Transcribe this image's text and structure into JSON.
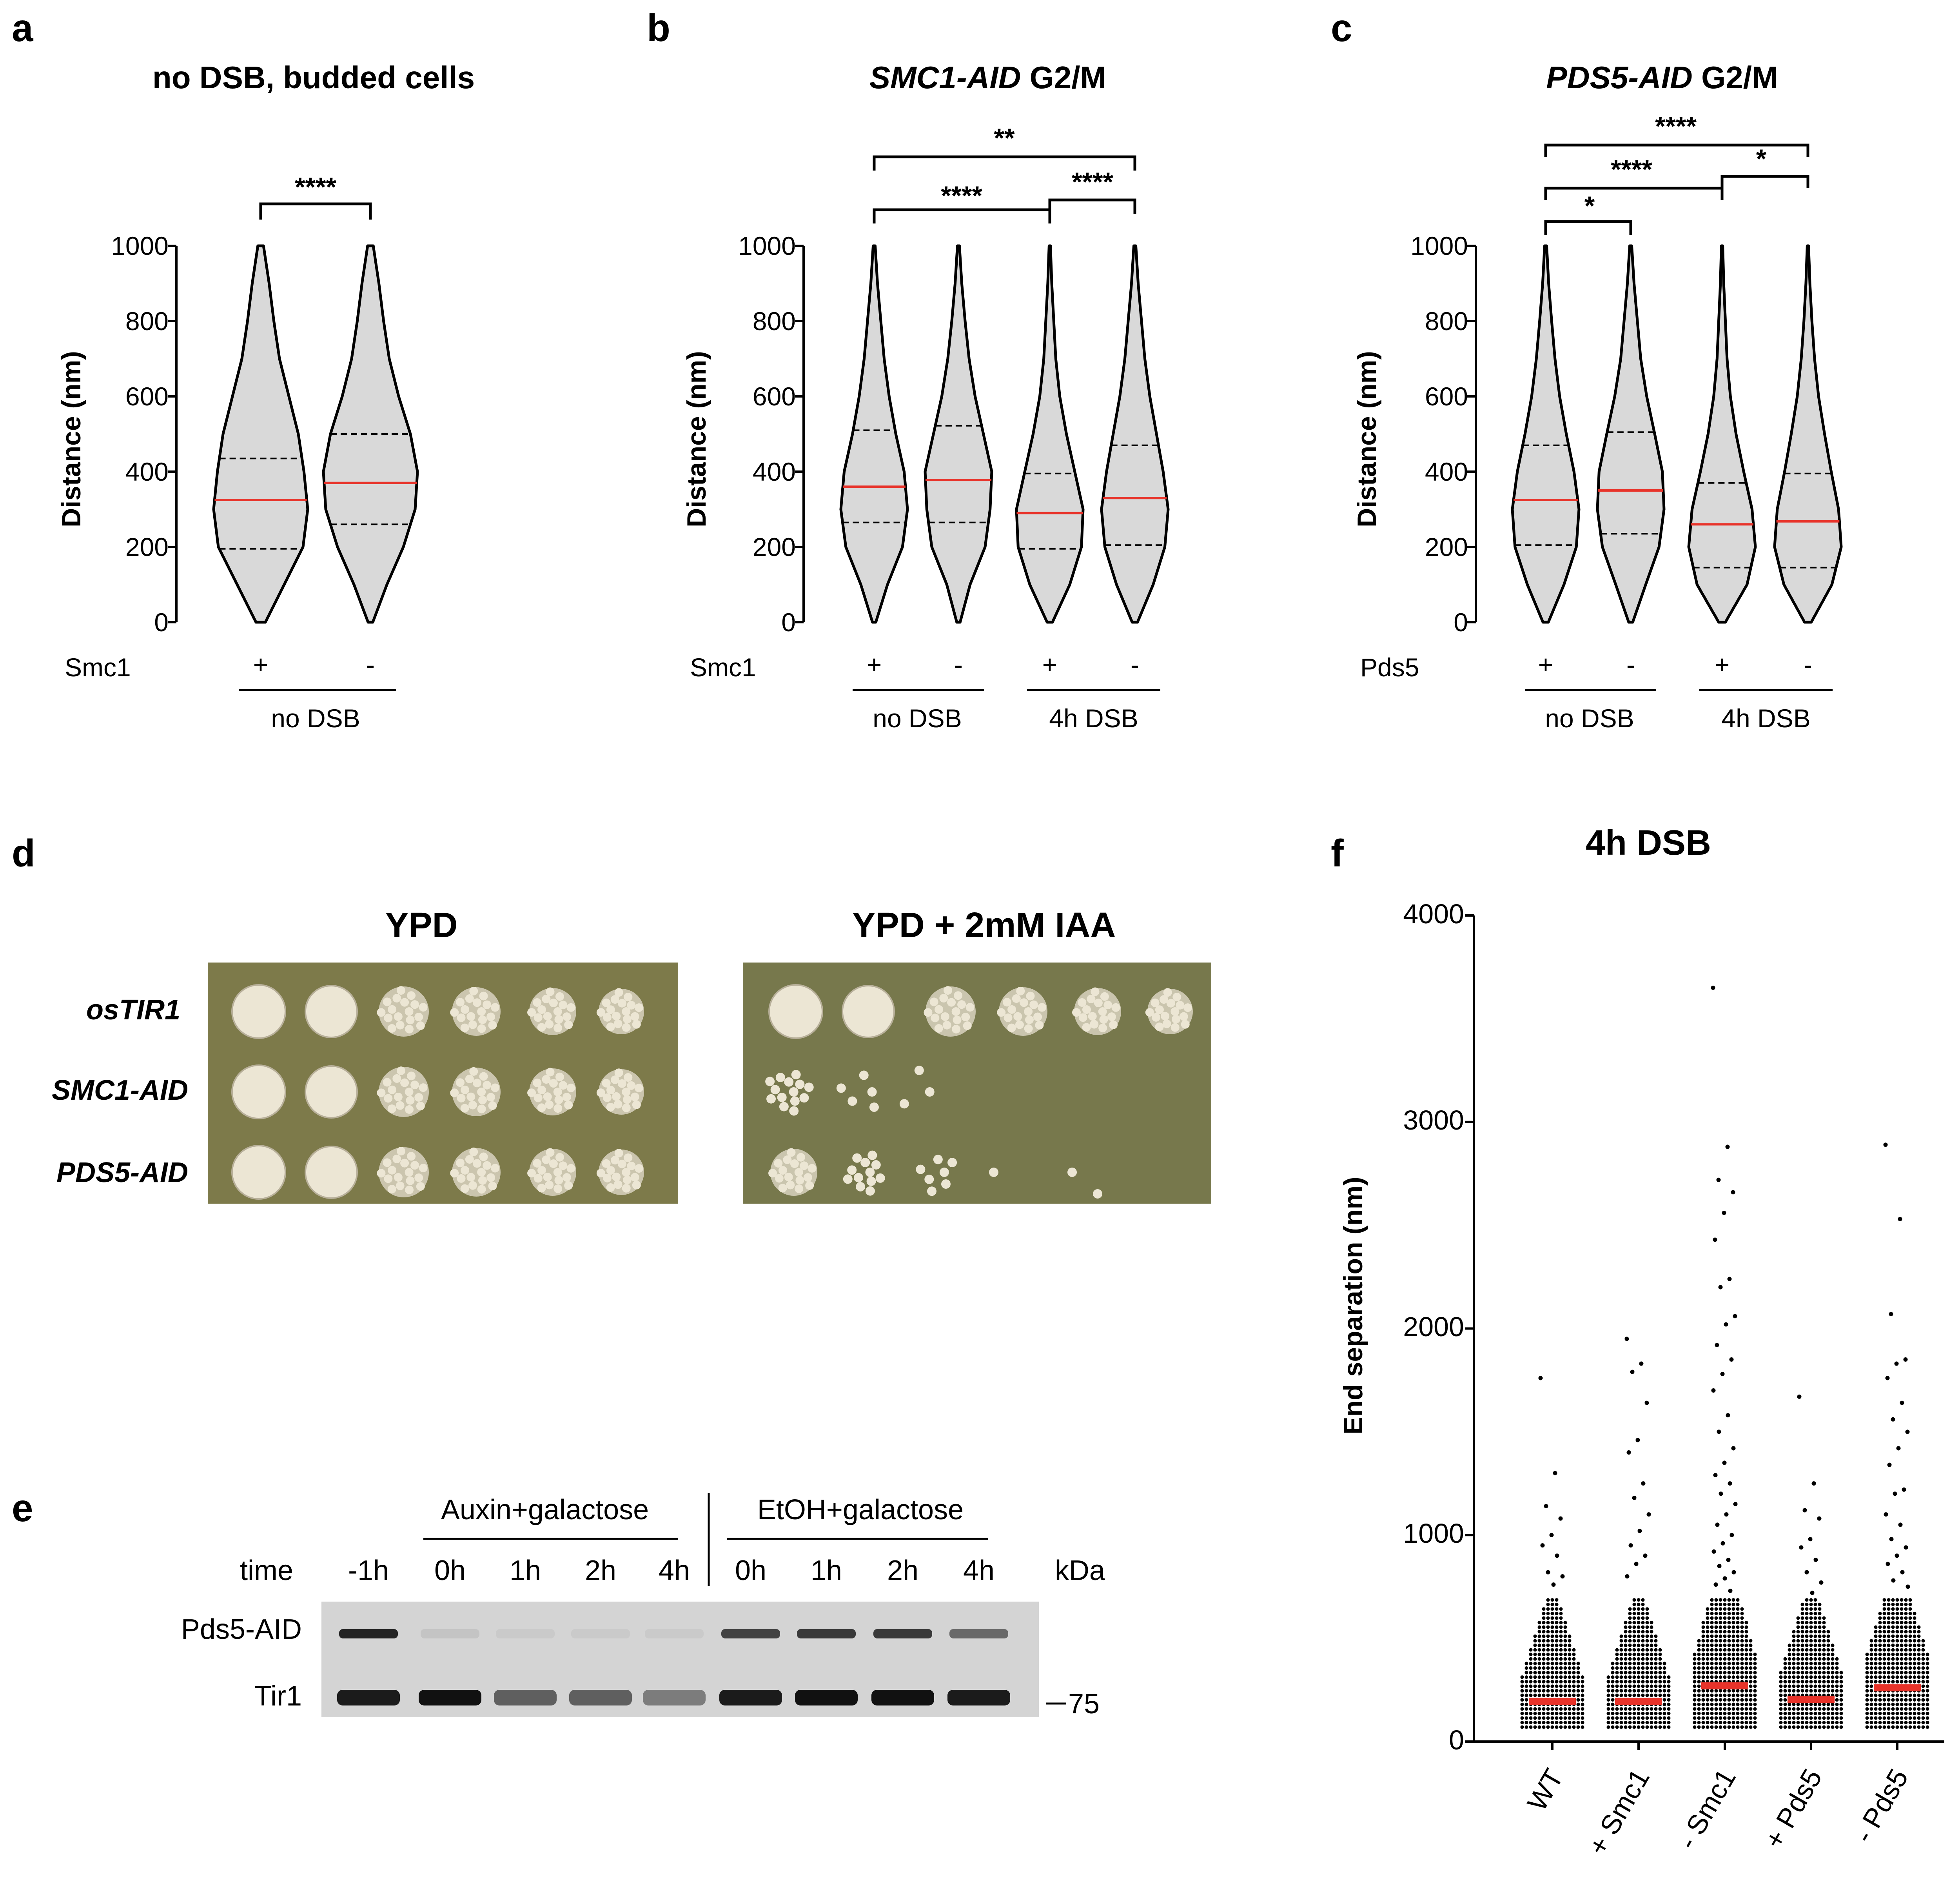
{
  "panels": {
    "a": {
      "letter": "a",
      "title": "no DSB, budded cells",
      "y_label": "Distance (nm)",
      "y_ticks": [
        "0",
        "200",
        "400",
        "600",
        "800",
        "1000"
      ],
      "factor_label": "Smc1",
      "signs": [
        "+",
        "-"
      ],
      "groups": [
        "no DSB"
      ],
      "sig": [
        "****"
      ]
    },
    "b": {
      "letter": "b",
      "title_italic": "SMC1-AID",
      "title_rest": " G2/M",
      "y_label": "Distance (nm)",
      "y_ticks": [
        "0",
        "200",
        "400",
        "600",
        "800",
        "1000"
      ],
      "factor_label": "Smc1",
      "signs": [
        "+",
        "-",
        "+",
        "-"
      ],
      "groups": [
        "no DSB",
        "4h DSB"
      ],
      "sig": [
        "**",
        "****",
        "****"
      ]
    },
    "c": {
      "letter": "c",
      "title_italic": "PDS5-AID",
      "title_rest": " G2/M",
      "y_label": "Distance (nm)",
      "y_ticks": [
        "0",
        "200",
        "400",
        "600",
        "800",
        "1000"
      ],
      "factor_label": "Pds5",
      "signs": [
        "+",
        "-",
        "+",
        "-"
      ],
      "groups": [
        "no DSB",
        "4h DSB"
      ],
      "sig": [
        "****",
        "****",
        "*",
        "*"
      ]
    },
    "d": {
      "letter": "d",
      "plate_titles": [
        "YPD",
        "YPD + 2mM IAA"
      ],
      "strains": [
        "osTIR1",
        "SMC1-AID",
        "PDS5-AID"
      ]
    },
    "e": {
      "letter": "e",
      "conditions": [
        "Auxin+galactose",
        "EtOH+galactose"
      ],
      "time_label": "time",
      "lanes": [
        "-1h",
        "0h",
        "1h",
        "2h",
        "4h",
        "0h",
        "1h",
        "2h",
        "4h"
      ],
      "kda_label": "kDa",
      "rows": [
        "Pds5-AID",
        "Tir1"
      ],
      "marker": "75"
    },
    "f": {
      "letter": "f",
      "title": "4h DSB",
      "y_label": "End separation (nm)",
      "y_ticks": [
        "0",
        "1000",
        "2000",
        "3000",
        "4000"
      ],
      "x_labels": [
        "WT",
        "+ Smc1",
        "- Smc1",
        "+ Pds5",
        "- Pds5"
      ]
    }
  },
  "colors": {
    "violin_fill": "#d9d9d9",
    "median": "#e8332a",
    "plate_bg": "#7d7a4a",
    "colony": "#ece6d4"
  },
  "chart_data": [
    {
      "id": "a",
      "type": "violin",
      "title": "no DSB, budded cells",
      "ylabel": "Distance (nm)",
      "ylim": [
        0,
        1000
      ],
      "categories": [
        "Smc1 +",
        "Smc1 -"
      ],
      "series": [
        {
          "name": "Smc1 +",
          "median": 325,
          "q1": 195,
          "q3": 435,
          "max": 1000,
          "widths": [
            0.1,
            0.5,
            0.9,
            1.0,
            0.92,
            0.8,
            0.6,
            0.4,
            0.28,
            0.18,
            0.06
          ]
        },
        {
          "name": "Smc1 -",
          "median": 370,
          "q1": 260,
          "q3": 500,
          "max": 1000,
          "widths": [
            0.05,
            0.35,
            0.7,
            0.95,
            1.0,
            0.85,
            0.6,
            0.4,
            0.28,
            0.18,
            0.06
          ]
        }
      ],
      "comparisons": [
        {
          "from": 0,
          "to": 1,
          "label": "****"
        }
      ]
    },
    {
      "id": "b",
      "type": "violin",
      "title": "SMC1-AID G2/M",
      "ylabel": "Distance (nm)",
      "ylim": [
        0,
        1000
      ],
      "categories": [
        "no DSB Smc1 +",
        "no DSB Smc1 -",
        "4h DSB Smc1 +",
        "4h DSB Smc1 -"
      ],
      "series": [
        {
          "name": "no DSB +",
          "median": 360,
          "q1": 265,
          "q3": 510,
          "max": 1000,
          "widths": [
            0.05,
            0.4,
            0.85,
            1.0,
            0.9,
            0.65,
            0.45,
            0.3,
            0.2,
            0.1,
            0.03
          ]
        },
        {
          "name": "no DSB -",
          "median": 378,
          "q1": 265,
          "q3": 522,
          "max": 1000,
          "widths": [
            0.05,
            0.35,
            0.8,
            0.95,
            1.0,
            0.75,
            0.5,
            0.32,
            0.2,
            0.1,
            0.03
          ]
        },
        {
          "name": "4h DSB +",
          "median": 290,
          "q1": 195,
          "q3": 395,
          "max": 1000,
          "widths": [
            0.08,
            0.6,
            0.95,
            1.0,
            0.75,
            0.5,
            0.3,
            0.18,
            0.12,
            0.06,
            0.02
          ]
        },
        {
          "name": "4h DSB -",
          "median": 330,
          "q1": 205,
          "q3": 470,
          "max": 1000,
          "widths": [
            0.08,
            0.55,
            0.9,
            1.0,
            0.85,
            0.65,
            0.45,
            0.3,
            0.2,
            0.1,
            0.03
          ]
        }
      ],
      "comparisons": [
        {
          "from": 0,
          "to": 3,
          "label": "**"
        },
        {
          "from": 0,
          "to": 2,
          "label": "****"
        },
        {
          "from": 2,
          "to": 3,
          "label": "****"
        }
      ]
    },
    {
      "id": "c",
      "type": "violin",
      "title": "PDS5-AID G2/M",
      "ylabel": "Distance (nm)",
      "ylim": [
        0,
        1000
      ],
      "categories": [
        "no DSB Pds5 +",
        "no DSB Pds5 -",
        "4h DSB Pds5 +",
        "4h DSB Pds5 -"
      ],
      "series": [
        {
          "name": "no DSB +",
          "median": 325,
          "q1": 205,
          "q3": 470,
          "max": 1000,
          "widths": [
            0.08,
            0.55,
            0.92,
            1.0,
            0.85,
            0.62,
            0.42,
            0.28,
            0.18,
            0.09,
            0.03
          ]
        },
        {
          "name": "no DSB -",
          "median": 350,
          "q1": 235,
          "q3": 505,
          "max": 1000,
          "widths": [
            0.06,
            0.45,
            0.85,
            1.0,
            0.95,
            0.72,
            0.48,
            0.3,
            0.2,
            0.1,
            0.03
          ]
        },
        {
          "name": "4h DSB +",
          "median": 260,
          "q1": 145,
          "q3": 370,
          "max": 1000,
          "widths": [
            0.1,
            0.75,
            1.0,
            0.9,
            0.65,
            0.42,
            0.25,
            0.15,
            0.1,
            0.05,
            0.02
          ]
        },
        {
          "name": "4h DSB -",
          "median": 268,
          "q1": 145,
          "q3": 395,
          "max": 1000,
          "widths": [
            0.1,
            0.72,
            1.0,
            0.92,
            0.7,
            0.5,
            0.32,
            0.2,
            0.12,
            0.06,
            0.02
          ]
        }
      ],
      "comparisons": [
        {
          "from": 0,
          "to": 3,
          "label": "****"
        },
        {
          "from": 0,
          "to": 2,
          "label": "****"
        },
        {
          "from": 2,
          "to": 3,
          "label": "*"
        },
        {
          "from": 0,
          "to": 1,
          "label": "*"
        }
      ]
    },
    {
      "id": "f",
      "type": "scatter",
      "title": "4h DSB",
      "ylabel": "End separation (nm)",
      "ylim": [
        0,
        4000
      ],
      "categories": [
        "WT",
        "+ Smc1",
        "- Smc1",
        "+ Pds5",
        "- Pds5"
      ],
      "medians": [
        195,
        195,
        270,
        205,
        260
      ],
      "outliers": [
        [
          1760,
          1300,
          1140,
          1080,
          1000,
          950,
          900,
          820,
          800,
          760
        ],
        [
          1950,
          1830,
          1790,
          1640,
          1460,
          1400,
          1250,
          1180,
          1100,
          1020,
          950,
          900,
          860,
          800
        ],
        [
          3650,
          2880,
          2720,
          2660,
          2560,
          2430,
          2240,
          2200,
          2060,
          2020,
          1920,
          1850,
          1780,
          1700,
          1580,
          1500,
          1420,
          1350,
          1290,
          1250,
          1200,
          1150,
          1100,
          1050,
          1000,
          960,
          920,
          880,
          850,
          820,
          790,
          760,
          730
        ],
        [
          1670,
          1250,
          1120,
          1080,
          980,
          940,
          880,
          820,
          770,
          720
        ],
        [
          2890,
          2530,
          2070,
          1850,
          1830,
          1760,
          1640,
          1560,
          1500,
          1420,
          1340,
          1220,
          1200,
          1100,
          1050,
          980,
          940,
          900,
          860,
          820,
          780,
          750
        ]
      ]
    }
  ]
}
